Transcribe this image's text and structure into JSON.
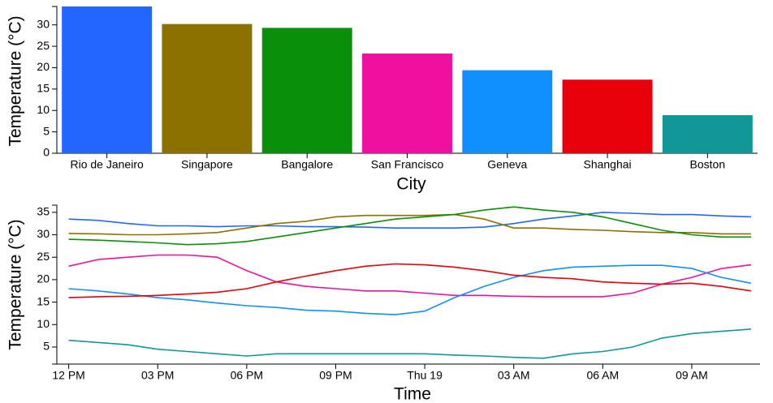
{
  "chart_data": [
    {
      "type": "bar",
      "x_label": "City",
      "y_label": "Temperature (°C)",
      "categories": [
        "Rio de Janeiro",
        "Singapore",
        "Bangalore",
        "San Francisco",
        "Geneva",
        "Shanghai",
        "Boston"
      ],
      "values": [
        34.3,
        30.2,
        29.3,
        23.3,
        19.4,
        17.2,
        8.9
      ],
      "colors": [
        "#2266ff",
        "#8c7000",
        "#0a8f0a",
        "#f010a0",
        "#1090ff",
        "#e8000a",
        "#109898"
      ],
      "ylim": [
        0,
        34.3
      ],
      "yticks": [
        0,
        5,
        10,
        15,
        20,
        25,
        30
      ]
    },
    {
      "type": "line",
      "x_label": "Time",
      "y_label": "Temperature (°C)",
      "x": [
        0,
        1,
        2,
        3,
        4,
        5,
        6,
        7,
        8,
        9,
        10,
        11,
        12,
        13,
        14,
        15,
        16,
        17,
        18,
        19,
        20,
        21,
        22,
        23
      ],
      "xlim": [
        -0.4,
        23.3
      ],
      "xticks": [
        {
          "value": 0,
          "label": "12 PM"
        },
        {
          "value": 3,
          "label": "03 PM"
        },
        {
          "value": 6,
          "label": "06 PM"
        },
        {
          "value": 9,
          "label": "09 PM"
        },
        {
          "value": 12,
          "label": "Thu 19"
        },
        {
          "value": 15,
          "label": "03 AM"
        },
        {
          "value": 18,
          "label": "06 AM"
        },
        {
          "value": 21,
          "label": "09 AM"
        }
      ],
      "ylim": [
        1.2,
        36.6
      ],
      "yticks": [
        5,
        10,
        15,
        20,
        25,
        30,
        35
      ],
      "series": [
        {
          "color": "#2266ff",
          "values": [
            33.5,
            33.2,
            32.5,
            32,
            32,
            31.8,
            32,
            32,
            31.8,
            31.8,
            31.7,
            31.5,
            31.5,
            31.5,
            31.7,
            32.5,
            33.5,
            34.2,
            35,
            34.8,
            34.5,
            34.5,
            34.2,
            34
          ]
        },
        {
          "color": "#8c7000",
          "values": [
            30.3,
            30.2,
            30,
            30,
            30.2,
            30.5,
            31.5,
            32.5,
            33,
            34,
            34.3,
            34.3,
            34.3,
            34.5,
            33.5,
            31.5,
            31.5,
            31.2,
            31,
            30.7,
            30.5,
            30.5,
            30.2,
            30.2
          ]
        },
        {
          "color": "#0a8f0a",
          "values": [
            29,
            28.8,
            28.5,
            28.2,
            27.8,
            28,
            28.5,
            29.5,
            30.5,
            31.5,
            32.5,
            33.5,
            34,
            34.5,
            35.5,
            36.2,
            35.5,
            35,
            34,
            32.5,
            31,
            30,
            29.5,
            29.5
          ]
        },
        {
          "color": "#f010a0",
          "values": [
            23,
            24.5,
            25,
            25.5,
            25.5,
            25,
            22,
            19.5,
            18.5,
            18,
            17.5,
            17.5,
            17,
            16.5,
            16.5,
            16.3,
            16.2,
            16.2,
            16.2,
            17,
            19,
            20.5,
            22.5,
            23.3
          ]
        },
        {
          "color": "#1090ff",
          "values": [
            18,
            17.5,
            16.8,
            16,
            15.5,
            14.8,
            14.2,
            13.8,
            13.2,
            13,
            12.5,
            12.2,
            13,
            16,
            18.5,
            20.5,
            22,
            22.8,
            23,
            23.2,
            23.2,
            22.5,
            20.5,
            19.2
          ]
        },
        {
          "color": "#e8000a",
          "values": [
            16,
            16.2,
            16.3,
            16.5,
            16.8,
            17.2,
            18,
            19.5,
            20.8,
            22,
            23,
            23.5,
            23.3,
            22.8,
            22,
            21,
            20.5,
            20.2,
            19.5,
            19.2,
            19,
            19.2,
            18.5,
            17.5
          ]
        },
        {
          "color": "#109898",
          "values": [
            6.5,
            6,
            5.5,
            4.5,
            4,
            3.5,
            3,
            3.5,
            3.5,
            3.5,
            3.5,
            3.5,
            3.5,
            3.2,
            3,
            2.7,
            2.5,
            3.5,
            4,
            5,
            7,
            8,
            8.5,
            9
          ]
        }
      ]
    }
  ]
}
